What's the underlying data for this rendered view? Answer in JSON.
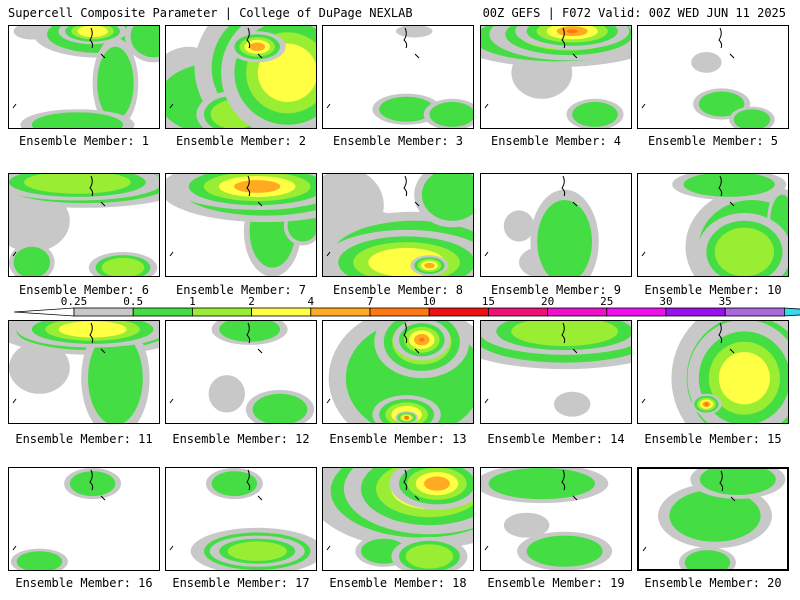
{
  "header": {
    "left": "Supercell Composite Parameter | College of DuPage NEXLAB",
    "right": "00Z GEFS | F072 Valid: 00Z WED JUN 11 2025"
  },
  "members": [
    "Ensemble Member: 1",
    "Ensemble Member: 2",
    "Ensemble Member: 3",
    "Ensemble Member: 4",
    "Ensemble Member: 5",
    "Ensemble Member: 6",
    "Ensemble Member: 7",
    "Ensemble Member: 8",
    "Ensemble Member: 9",
    "Ensemble Member: 10",
    "Ensemble Member: 11",
    "Ensemble Member: 12",
    "Ensemble Member: 13",
    "Ensemble Member: 14",
    "Ensemble Member: 15",
    "Ensemble Member: 16",
    "Ensemble Member: 17",
    "Ensemble Member: 18",
    "Ensemble Member: 19",
    "Ensemble Member: 20"
  ],
  "colorbar": {
    "levels": [
      "0.25",
      "0.5",
      "1",
      "2",
      "4",
      "7",
      "10",
      "15",
      "20",
      "25",
      "30",
      "35"
    ],
    "colors": [
      "#c8c8c8",
      "#44dd44",
      "#99ee33",
      "#ffff44",
      "#ffaa22",
      "#ff7711",
      "#ee1111",
      "#ee1177",
      "#ee11cc",
      "#ee11ee",
      "#9911ee",
      "#aa66dd",
      "#33ddee"
    ]
  },
  "fields": [
    [
      [
        0.55,
        0.05,
        0.18,
        0.1,
        3
      ],
      [
        0.6,
        0.08,
        0.35,
        0.18,
        1
      ],
      [
        0.7,
        0.55,
        0.12,
        0.35,
        1
      ],
      [
        0.45,
        0.95,
        0.3,
        0.12,
        1
      ],
      [
        0.95,
        0.1,
        0.15,
        0.2,
        1
      ],
      [
        0.15,
        0.05,
        0.12,
        0.08,
        0
      ]
    ],
    [
      [
        0.8,
        0.45,
        0.35,
        0.5,
        3
      ],
      [
        0.75,
        0.4,
        0.45,
        0.6,
        2
      ],
      [
        0.35,
        0.7,
        0.4,
        0.35,
        1
      ],
      [
        0.15,
        0.55,
        0.25,
        0.35,
        0
      ],
      [
        0.6,
        0.2,
        0.15,
        0.12,
        4
      ],
      [
        0.45,
        0.85,
        0.2,
        0.18,
        2
      ]
    ],
    [
      [
        0.55,
        0.8,
        0.18,
        0.12,
        1
      ],
      [
        0.85,
        0.85,
        0.15,
        0.12,
        1
      ],
      [
        0.6,
        0.05,
        0.12,
        0.06,
        0
      ]
    ],
    [
      [
        0.6,
        0.05,
        0.3,
        0.14,
        5
      ],
      [
        0.58,
        0.08,
        0.42,
        0.2,
        3
      ],
      [
        0.5,
        0.12,
        0.55,
        0.22,
        1
      ],
      [
        0.4,
        0.45,
        0.2,
        0.25,
        0
      ],
      [
        0.75,
        0.85,
        0.15,
        0.12,
        1
      ]
    ],
    [
      [
        0.55,
        0.75,
        0.15,
        0.12,
        1
      ],
      [
        0.75,
        0.9,
        0.12,
        0.1,
        1
      ],
      [
        0.45,
        0.35,
        0.1,
        0.1,
        0
      ]
    ],
    [
      [
        0.45,
        0.08,
        0.45,
        0.14,
        2
      ],
      [
        0.5,
        0.1,
        0.55,
        0.18,
        1
      ],
      [
        0.15,
        0.45,
        0.25,
        0.3,
        0
      ],
      [
        0.15,
        0.85,
        0.12,
        0.15,
        1
      ],
      [
        0.75,
        0.9,
        0.18,
        0.12,
        2
      ]
    ],
    [
      [
        0.6,
        0.12,
        0.45,
        0.18,
        4
      ],
      [
        0.65,
        0.15,
        0.55,
        0.25,
        2
      ],
      [
        0.7,
        0.55,
        0.15,
        0.35,
        1
      ],
      [
        0.9,
        0.5,
        0.1,
        0.15,
        1
      ]
    ],
    [
      [
        0.55,
        0.85,
        0.45,
        0.25,
        3
      ],
      [
        0.6,
        0.8,
        0.55,
        0.35,
        1
      ],
      [
        0.7,
        0.88,
        0.1,
        0.08,
        4
      ],
      [
        0.15,
        0.3,
        0.25,
        0.35,
        0
      ],
      [
        0.85,
        0.2,
        0.2,
        0.25,
        1
      ],
      [
        0.3,
        0.55,
        0.25,
        0.2,
        0
      ]
    ],
    [
      [
        0.55,
        0.65,
        0.18,
        0.4,
        1
      ],
      [
        0.4,
        0.85,
        0.15,
        0.15,
        0
      ],
      [
        0.25,
        0.5,
        0.1,
        0.15,
        0
      ]
    ],
    [
      [
        0.7,
        0.75,
        0.25,
        0.3,
        2
      ],
      [
        0.75,
        0.7,
        0.35,
        0.45,
        1
      ],
      [
        0.6,
        0.1,
        0.3,
        0.12,
        1
      ],
      [
        0.95,
        0.45,
        0.08,
        0.25,
        1
      ]
    ],
    [
      [
        0.55,
        0.08,
        0.4,
        0.14,
        3
      ],
      [
        0.55,
        0.1,
        0.5,
        0.18,
        1
      ],
      [
        0.7,
        0.55,
        0.18,
        0.45,
        1
      ],
      [
        0.2,
        0.45,
        0.2,
        0.25,
        0
      ]
    ],
    [
      [
        0.55,
        0.08,
        0.2,
        0.12,
        1
      ],
      [
        0.75,
        0.85,
        0.18,
        0.15,
        1
      ],
      [
        0.4,
        0.7,
        0.12,
        0.18,
        0
      ]
    ],
    [
      [
        0.65,
        0.18,
        0.15,
        0.16,
        5
      ],
      [
        0.65,
        0.2,
        0.25,
        0.28,
        2
      ],
      [
        0.6,
        0.55,
        0.45,
        0.55,
        1
      ],
      [
        0.55,
        0.9,
        0.18,
        0.15,
        3
      ],
      [
        0.55,
        0.93,
        0.06,
        0.05,
        5
      ]
    ],
    [
      [
        0.55,
        0.1,
        0.45,
        0.18,
        2
      ],
      [
        0.55,
        0.15,
        0.6,
        0.25,
        1
      ],
      [
        0.6,
        0.8,
        0.12,
        0.12,
        0
      ]
    ],
    [
      [
        0.7,
        0.55,
        0.3,
        0.45,
        3
      ],
      [
        0.72,
        0.55,
        0.4,
        0.6,
        1
      ],
      [
        0.45,
        0.8,
        0.08,
        0.08,
        5
      ],
      [
        0.6,
        0.2,
        0.25,
        0.15,
        0
      ]
    ],
    [
      [
        0.55,
        0.15,
        0.15,
        0.12,
        1
      ],
      [
        0.2,
        0.9,
        0.15,
        0.1,
        1
      ]
    ],
    [
      [
        0.6,
        0.8,
        0.25,
        0.12,
        2
      ],
      [
        0.6,
        0.8,
        0.35,
        0.18,
        1
      ],
      [
        0.45,
        0.15,
        0.15,
        0.12,
        1
      ]
    ],
    [
      [
        0.75,
        0.15,
        0.25,
        0.2,
        4
      ],
      [
        0.7,
        0.2,
        0.45,
        0.35,
        3
      ],
      [
        0.65,
        0.22,
        0.6,
        0.45,
        1
      ],
      [
        0.7,
        0.85,
        0.2,
        0.15,
        2
      ],
      [
        0.4,
        0.8,
        0.15,
        0.12,
        1
      ]
    ],
    [
      [
        0.55,
        0.8,
        0.25,
        0.15,
        1
      ],
      [
        0.4,
        0.15,
        0.35,
        0.15,
        1
      ],
      [
        0.3,
        0.55,
        0.15,
        0.12,
        0
      ]
    ],
    [
      [
        0.5,
        0.45,
        0.3,
        0.25,
        1
      ],
      [
        0.65,
        0.1,
        0.25,
        0.15,
        1
      ],
      [
        0.45,
        0.9,
        0.15,
        0.12,
        1
      ]
    ]
  ]
}
